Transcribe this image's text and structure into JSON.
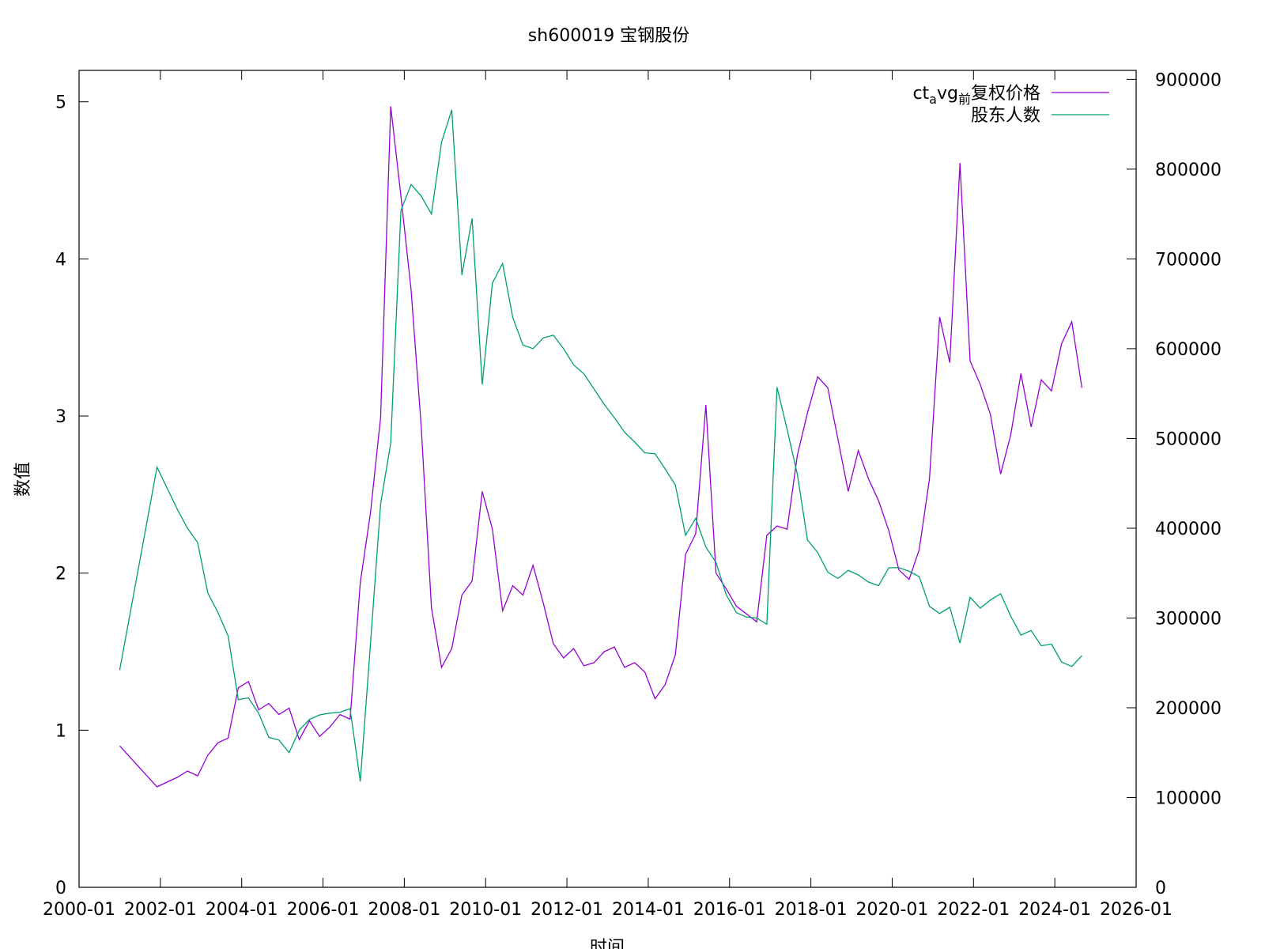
{
  "chart_data": {
    "type": "line",
    "title": "sh600019 宝钢股份",
    "xlabel": "时间",
    "ylabel": "数值",
    "y2label": "",
    "x_ticks": [
      "2000-01",
      "2002-01",
      "2004-01",
      "2006-01",
      "2008-01",
      "2010-01",
      "2012-01",
      "2014-01",
      "2016-01",
      "2018-01",
      "2020-01",
      "2022-01",
      "2024-01",
      "2026-01"
    ],
    "xlim": [
      "2000-01",
      "2026-01"
    ],
    "ylim": [
      0,
      5.2
    ],
    "y_ticks": [
      0,
      1,
      2,
      3,
      4,
      5
    ],
    "y2lim": [
      0,
      910000
    ],
    "y2_ticks": [
      0,
      100000,
      200000,
      300000,
      400000,
      500000,
      600000,
      700000,
      800000,
      900000
    ],
    "grid": false,
    "legend_position": "top-right",
    "series": [
      {
        "name": "ctavg前复权价格",
        "name_parts": {
          "base": "ct",
          "sub1": "a",
          "mid": "vg",
          "sub2": "前",
          "tail": "复权价格"
        },
        "color": "#9400d3",
        "axis": "y",
        "x": [
          "2001-01",
          "2001-12",
          "2002-06",
          "2002-09",
          "2002-12",
          "2003-03",
          "2003-06",
          "2003-09",
          "2003-12",
          "2004-03",
          "2004-06",
          "2004-09",
          "2004-12",
          "2005-03",
          "2005-06",
          "2005-09",
          "2005-12",
          "2006-03",
          "2006-06",
          "2006-09",
          "2006-12",
          "2007-03",
          "2007-06",
          "2007-09",
          "2007-12",
          "2008-03",
          "2008-06",
          "2008-09",
          "2008-12",
          "2009-03",
          "2009-06",
          "2009-09",
          "2009-12",
          "2010-03",
          "2010-06",
          "2010-09",
          "2010-12",
          "2011-03",
          "2011-06",
          "2011-09",
          "2011-12",
          "2012-03",
          "2012-06",
          "2012-09",
          "2012-12",
          "2013-03",
          "2013-06",
          "2013-09",
          "2013-12",
          "2014-03",
          "2014-06",
          "2014-09",
          "2014-12",
          "2015-03",
          "2015-06",
          "2015-09",
          "2015-12",
          "2016-03",
          "2016-06",
          "2016-09",
          "2016-12",
          "2017-03",
          "2017-06",
          "2017-09",
          "2017-12",
          "2018-03",
          "2018-06",
          "2018-09",
          "2018-12",
          "2019-03",
          "2019-06",
          "2019-09",
          "2019-12",
          "2020-03",
          "2020-06",
          "2020-09",
          "2020-12",
          "2021-03",
          "2021-06",
          "2021-09",
          "2021-12",
          "2022-03",
          "2022-06",
          "2022-09",
          "2022-12",
          "2023-03",
          "2023-06",
          "2023-09",
          "2023-12",
          "2024-03",
          "2024-06",
          "2024-09"
        ],
        "values": [
          0.9,
          0.64,
          0.7,
          0.74,
          0.71,
          0.84,
          0.92,
          0.95,
          1.27,
          1.31,
          1.13,
          1.17,
          1.1,
          1.14,
          0.94,
          1.06,
          0.96,
          1.02,
          1.1,
          1.07,
          1.94,
          2.38,
          2.99,
          4.97,
          4.4,
          3.8,
          2.93,
          1.78,
          1.4,
          1.52,
          1.86,
          1.95,
          2.52,
          2.28,
          1.76,
          1.92,
          1.86,
          2.05,
          1.81,
          1.55,
          1.46,
          1.52,
          1.41,
          1.43,
          1.5,
          1.53,
          1.4,
          1.43,
          1.37,
          1.2,
          1.29,
          1.48,
          2.12,
          2.25,
          3.07,
          2.0,
          1.9,
          1.79,
          1.74,
          1.69,
          2.24,
          2.3,
          2.28,
          2.75,
          3.02,
          3.25,
          3.18,
          2.85,
          2.52,
          2.78,
          2.6,
          2.46,
          2.27,
          2.02,
          1.96,
          2.15,
          2.6,
          3.63,
          3.34,
          4.61,
          3.35,
          3.2,
          3.01,
          2.63,
          2.88,
          3.27,
          2.93,
          3.23,
          3.16,
          3.46,
          3.6,
          3.18
        ]
      },
      {
        "name": "股东人数",
        "color": "#009e73",
        "axis": "y2",
        "x": [
          "2001-01",
          "2001-12",
          "2002-06",
          "2002-09",
          "2002-12",
          "2003-03",
          "2003-06",
          "2003-09",
          "2003-12",
          "2004-03",
          "2004-06",
          "2004-09",
          "2004-12",
          "2005-03",
          "2005-06",
          "2005-09",
          "2005-12",
          "2006-03",
          "2006-06",
          "2006-09",
          "2006-12",
          "2007-03",
          "2007-06",
          "2007-09",
          "2007-12",
          "2008-03",
          "2008-06",
          "2008-09",
          "2008-12",
          "2009-03",
          "2009-06",
          "2009-09",
          "2009-12",
          "2010-03",
          "2010-06",
          "2010-09",
          "2010-12",
          "2011-03",
          "2011-06",
          "2011-09",
          "2011-12",
          "2012-03",
          "2012-06",
          "2012-09",
          "2012-12",
          "2013-03",
          "2013-06",
          "2013-09",
          "2013-12",
          "2014-03",
          "2014-06",
          "2014-09",
          "2014-12",
          "2015-03",
          "2015-06",
          "2015-09",
          "2015-12",
          "2016-03",
          "2016-06",
          "2016-09",
          "2016-12",
          "2017-03",
          "2017-06",
          "2017-09",
          "2017-12",
          "2018-03",
          "2018-06",
          "2018-09",
          "2018-12",
          "2019-03",
          "2019-06",
          "2019-09",
          "2019-12",
          "2020-03",
          "2020-06",
          "2020-09",
          "2020-12",
          "2021-03",
          "2021-06",
          "2021-09",
          "2021-12",
          "2022-03",
          "2022-06",
          "2022-09",
          "2022-12",
          "2023-03",
          "2023-06",
          "2023-09",
          "2023-12",
          "2024-03",
          "2024-06",
          "2024-09"
        ],
        "values": [
          242000,
          468000,
          421000,
          400000,
          384000,
          328000,
          306000,
          280000,
          209000,
          211000,
          194000,
          167000,
          164000,
          150000,
          175000,
          187000,
          192000,
          194000,
          195000,
          199000,
          118000,
          270000,
          427000,
          495000,
          754000,
          783000,
          770000,
          750000,
          830000,
          866000,
          682000,
          745000,
          560000,
          673000,
          695000,
          635000,
          604000,
          600000,
          612000,
          615000,
          600000,
          582000,
          572000,
          555000,
          538000,
          523000,
          507000,
          496000,
          484000,
          483000,
          466000,
          448000,
          392000,
          411000,
          379000,
          362000,
          326000,
          306000,
          301000,
          300000,
          293000,
          557000,
          510000,
          460000,
          387000,
          373000,
          351000,
          344000,
          353000,
          348000,
          340000,
          336000,
          356000,
          356000,
          352000,
          346000,
          313000,
          305000,
          312000,
          272000,
          323000,
          311000,
          320000,
          327000,
          302000,
          281000,
          286000,
          269000,
          271000,
          251000,
          246000,
          258000
        ]
      }
    ]
  }
}
